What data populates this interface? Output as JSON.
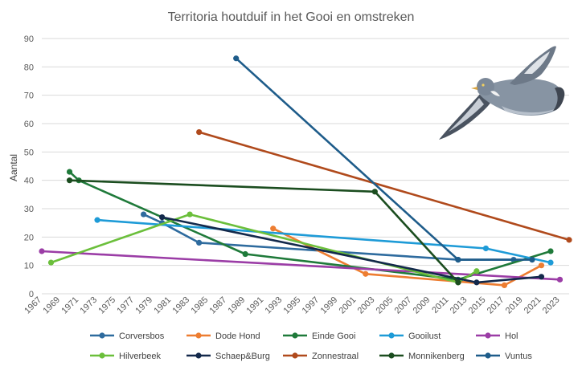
{
  "chart_data": {
    "type": "line",
    "title": "Territoria houtduif in het Gooi en omstreken",
    "xlabel": "",
    "ylabel": "Aantal",
    "ylim": [
      0,
      90
    ],
    "xlim": [
      1967,
      2024
    ],
    "y_ticks": [
      "0",
      "10",
      "20",
      "30",
      "40",
      "50",
      "60",
      "70",
      "80",
      "90"
    ],
    "x_ticks": [
      "1967",
      "1969",
      "1971",
      "1973",
      "1975",
      "1977",
      "1979",
      "1981",
      "1983",
      "1985",
      "1987",
      "1989",
      "1991",
      "1993",
      "1995",
      "1997",
      "1999",
      "2001",
      "2003",
      "2005",
      "2007",
      "2009",
      "2011",
      "2013",
      "2015",
      "2017",
      "2019",
      "2021",
      "2023"
    ],
    "grid": true,
    "legend_position": "bottom",
    "series": [
      {
        "name": "Corversbos",
        "color": "#2E6B9E",
        "points": [
          [
            1978,
            28
          ],
          [
            1980,
            25
          ],
          [
            1984,
            18
          ],
          [
            2012,
            12
          ],
          [
            2018,
            12
          ]
        ]
      },
      {
        "name": "Dode Hond",
        "color": "#ED7D31",
        "points": [
          [
            1992,
            23
          ],
          [
            2002,
            7
          ],
          [
            2017,
            3
          ],
          [
            2021,
            10
          ]
        ]
      },
      {
        "name": "Einde Gooi",
        "color": "#1F7A3A",
        "points": [
          [
            1970,
            43
          ],
          [
            1971,
            40
          ],
          [
            1989,
            14
          ],
          [
            2012,
            5
          ],
          [
            2022,
            15
          ]
        ]
      },
      {
        "name": "Gooilust",
        "color": "#1E9BD7",
        "points": [
          [
            1973,
            26
          ],
          [
            2015,
            16
          ],
          [
            2022,
            11
          ]
        ]
      },
      {
        "name": "Hol",
        "color": "#9B3DA6",
        "points": [
          [
            1967,
            15
          ],
          [
            2023,
            5
          ]
        ]
      },
      {
        "name": "Hilverbeek",
        "color": "#6BBF3B",
        "points": [
          [
            1968,
            11
          ],
          [
            1983,
            28
          ],
          [
            2012,
            4
          ],
          [
            2014,
            8
          ]
        ]
      },
      {
        "name": "Schaep&Burg",
        "color": "#13294B",
        "points": [
          [
            1980,
            27
          ],
          [
            2014,
            4
          ],
          [
            2021,
            6
          ]
        ]
      },
      {
        "name": "Zonnestraal",
        "color": "#B04A1C",
        "points": [
          [
            1984,
            57
          ],
          [
            2024,
            19
          ]
        ]
      },
      {
        "name": "Monnikenberg",
        "color": "#1B4D1F",
        "points": [
          [
            1970,
            40
          ],
          [
            2003,
            36
          ],
          [
            2012,
            4
          ]
        ]
      },
      {
        "name": "Vuntus",
        "color": "#1E5C8A",
        "points": [
          [
            1988,
            83
          ],
          [
            2012,
            12
          ],
          [
            2020,
            12
          ]
        ]
      }
    ]
  },
  "image": {
    "icon": "wood-pigeon-illustration"
  }
}
